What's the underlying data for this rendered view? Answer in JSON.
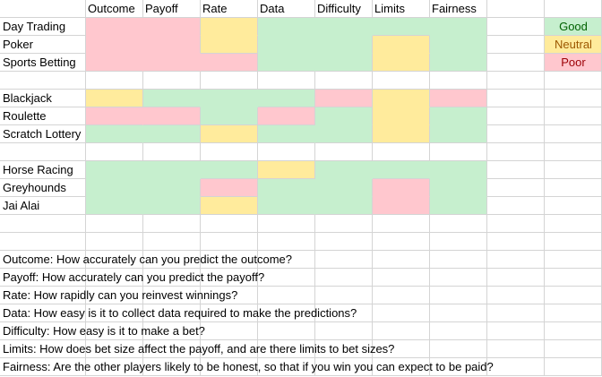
{
  "colors": {
    "good": "#c6efce",
    "neutral": "#ffeb9c",
    "poor": "#ffc7ce",
    "grid": "#d4d4d4"
  },
  "columns": [
    "Outcome",
    "Payoff",
    "Rate",
    "Data",
    "Difficulty",
    "Limits",
    "Fairness"
  ],
  "groups": [
    {
      "rows": [
        {
          "label": "Day Trading",
          "ratings": [
            "poor",
            "poor",
            "neutral",
            "good",
            "good",
            "good",
            "good"
          ]
        },
        {
          "label": "Poker",
          "ratings": [
            "poor",
            "poor",
            "neutral",
            "good",
            "good",
            "neutral",
            "good"
          ]
        },
        {
          "label": "Sports Betting",
          "ratings": [
            "poor",
            "poor",
            "poor",
            "good",
            "good",
            "neutral",
            "good"
          ]
        }
      ]
    },
    {
      "rows": [
        {
          "label": "Blackjack",
          "ratings": [
            "neutral",
            "good",
            "good",
            "good",
            "poor",
            "neutral",
            "poor"
          ]
        },
        {
          "label": "Roulette",
          "ratings": [
            "poor",
            "poor",
            "good",
            "poor",
            "good",
            "neutral",
            "good"
          ]
        },
        {
          "label": "Scratch Lottery",
          "ratings": [
            "good",
            "good",
            "neutral",
            "good",
            "good",
            "neutral",
            "good"
          ]
        }
      ]
    },
    {
      "rows": [
        {
          "label": "Horse Racing",
          "ratings": [
            "good",
            "good",
            "good",
            "neutral",
            "good",
            "good",
            "good"
          ]
        },
        {
          "label": "Greyhounds",
          "ratings": [
            "good",
            "good",
            "poor",
            "good",
            "good",
            "poor",
            "good"
          ]
        },
        {
          "label": "Jai Alai",
          "ratings": [
            "good",
            "good",
            "neutral",
            "good",
            "good",
            "poor",
            "good"
          ]
        }
      ]
    }
  ],
  "legend": [
    {
      "label": "Good",
      "rating": "good",
      "text_color": "#006100"
    },
    {
      "label": "Neutral",
      "rating": "neutral",
      "text_color": "#9c5700"
    },
    {
      "label": "Poor",
      "rating": "poor",
      "text_color": "#9c0006"
    }
  ],
  "notes": [
    "Outcome: How accurately can you predict the outcome?",
    "Payoff: How accurately can you predict the payoff?",
    "Rate: How rapidly can you reinvest winnings?",
    "Data: How easy is it to collect data required to make the predictions?",
    "Difficulty: How easy is it to make a bet?",
    "Limits: How does bet size affect the payoff, and are there limits to bet sizes?",
    "Fairness: Are the other players likely to be honest, so that if you win you can expect to be paid?"
  ]
}
